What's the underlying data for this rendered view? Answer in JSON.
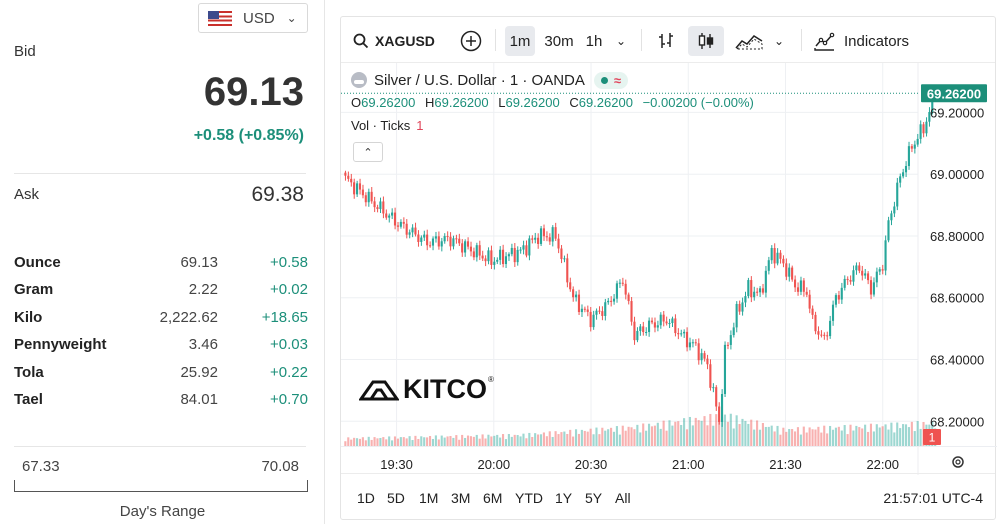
{
  "currency": {
    "flag_icon": "us-flag-icon",
    "code": "USD"
  },
  "quote": {
    "bid_label": "Bid",
    "bid": "69.13",
    "bid_change": "+0.58 (+0.85%)",
    "ask_label": "Ask",
    "ask": "69.38"
  },
  "units": [
    {
      "name": "Ounce",
      "price": "69.13",
      "change": "+0.58"
    },
    {
      "name": "Gram",
      "price": "2.22",
      "change": "+0.02"
    },
    {
      "name": "Kilo",
      "price": "2,222.62",
      "change": "+18.65"
    },
    {
      "name": "Pennyweight",
      "price": "3.46",
      "change": "+0.03"
    },
    {
      "name": "Tola",
      "price": "25.92",
      "change": "+0.22"
    },
    {
      "name": "Tael",
      "price": "84.01",
      "change": "+0.70"
    }
  ],
  "day_range": {
    "low": "67.33",
    "high": "70.08",
    "label": "Day's Range"
  },
  "toolbar": {
    "symbol": "XAGUSD",
    "intervals": [
      "1m",
      "30m",
      "1h"
    ],
    "active_interval": "1m",
    "indicators_label": "Indicators"
  },
  "legend": {
    "title": "Silver / U.S. Dollar · 1 · OANDA",
    "approx_symbol": "≈",
    "ohlc": [
      {
        "key": "O",
        "value": "69.26200"
      },
      {
        "key": "H",
        "value": "69.26200"
      },
      {
        "key": "L",
        "value": "69.26200"
      },
      {
        "key": "C",
        "value": "69.26200"
      }
    ],
    "change": "−0.00200 (−0.00%)",
    "vol_label": "Vol · Ticks",
    "vol_value": "1"
  },
  "logo_text": "KITCO",
  "logo_reg": "®",
  "bottom": {
    "ranges": [
      "1D",
      "5D",
      "1M",
      "3M",
      "6M",
      "YTD",
      "1Y",
      "5Y",
      "All"
    ],
    "clock": "21:57:01 UTC-4"
  },
  "colors": {
    "up": "#26a69a",
    "down": "#ef5350",
    "accent": "#1c8f7a",
    "price_tag": "#1c8f7a"
  },
  "chart_data": {
    "type": "candlestick",
    "title": "Silver / U.S. Dollar · 1 · OANDA",
    "y_ticks": [
      "69.20000",
      "69.00000",
      "68.80000",
      "68.60000",
      "68.40000",
      "68.20000"
    ],
    "ylim": [
      68.12,
      69.36
    ],
    "x_ticks": [
      "19:30",
      "20:00",
      "20:30",
      "21:00",
      "21:30",
      "22:00"
    ],
    "last_price": "69.26200",
    "last_volume": "1",
    "anchor_closes": [
      [
        0,
        68.985
      ],
      [
        8,
        68.92
      ],
      [
        18,
        68.84
      ],
      [
        28,
        68.78
      ],
      [
        36,
        68.79
      ],
      [
        50,
        68.72
      ],
      [
        60,
        68.75
      ],
      [
        66,
        68.8
      ],
      [
        72,
        68.8
      ],
      [
        78,
        68.6
      ],
      [
        84,
        68.53
      ],
      [
        90,
        68.58
      ],
      [
        95,
        68.66
      ],
      [
        99,
        68.48
      ],
      [
        104,
        68.51
      ],
      [
        110,
        68.53
      ],
      [
        116,
        68.47
      ],
      [
        120,
        68.44
      ],
      [
        124,
        68.38
      ],
      [
        128,
        68.2
      ],
      [
        130,
        68.42
      ],
      [
        134,
        68.55
      ],
      [
        138,
        68.63
      ],
      [
        142,
        68.61
      ],
      [
        146,
        68.75
      ],
      [
        150,
        68.71
      ],
      [
        154,
        68.64
      ],
      [
        158,
        68.62
      ],
      [
        160,
        68.52
      ],
      [
        164,
        68.46
      ],
      [
        168,
        68.6
      ],
      [
        172,
        68.66
      ],
      [
        176,
        68.7
      ],
      [
        180,
        68.63
      ],
      [
        184,
        68.71
      ],
      [
        186,
        68.84
      ],
      [
        190,
        68.99
      ],
      [
        194,
        69.09
      ],
      [
        198,
        69.15
      ],
      [
        200,
        69.2
      ],
      [
        202,
        69.262
      ]
    ],
    "volume_profile": [
      [
        0,
        0.14
      ],
      [
        60,
        0.2
      ],
      [
        100,
        0.35
      ],
      [
        130,
        0.55
      ],
      [
        150,
        0.3
      ],
      [
        180,
        0.36
      ],
      [
        202,
        0.42
      ]
    ]
  }
}
